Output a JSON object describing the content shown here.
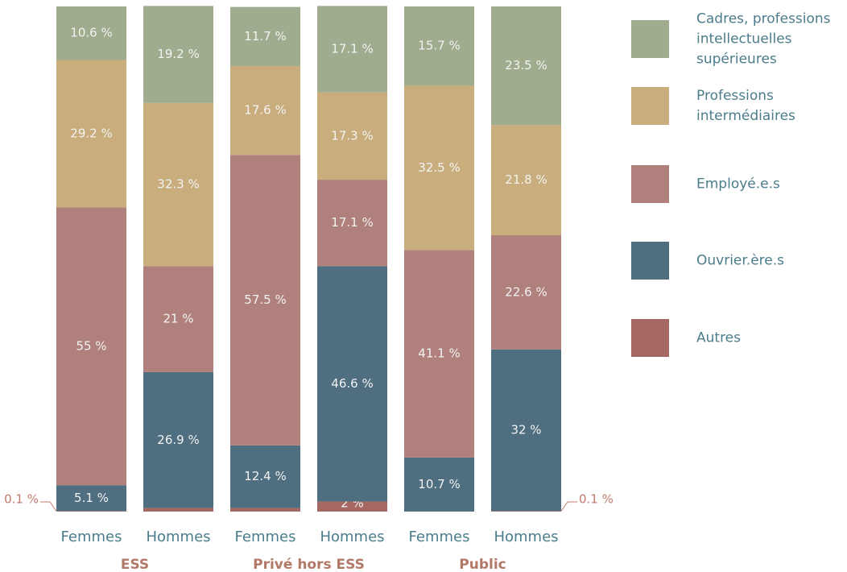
{
  "chart_data": {
    "type": "stacked_bar",
    "categories": [
      "Femmes",
      "Hommes",
      "Femmes",
      "Hommes",
      "Femmes",
      "Hommes"
    ],
    "groups": [
      "ESS",
      "Privé hors ESS",
      "Public"
    ],
    "ylim": [
      0,
      100
    ],
    "series": [
      {
        "name": "Autres",
        "color": "#a56862",
        "values": [
          0.1,
          0.7,
          0.7,
          2,
          null,
          0.1
        ],
        "value_labels": [
          "0.1 %",
          "0.7 %",
          "0.7 %",
          "2 %",
          null,
          "0.1 %"
        ]
      },
      {
        "name": "Ouvrier.ère.s",
        "color": "#4f6e7f",
        "values": [
          5.1,
          26.9,
          12.4,
          46.6,
          10.7,
          32
        ],
        "value_labels": [
          "5.1 %",
          "26.9 %",
          "12.4 %",
          "46.6 %",
          "10.7 %",
          "32 %"
        ]
      },
      {
        "name": "Employé.e.s",
        "color": "#b0807d",
        "values": [
          55,
          21,
          57.5,
          17.1,
          41.1,
          22.6
        ],
        "value_labels": [
          "55 %",
          "21 %",
          "57.5 %",
          "17.1 %",
          "41.1 %",
          "22.6 %"
        ]
      },
      {
        "name": "Professions intermédiaires",
        "color": "#c9ad7c",
        "values": [
          29.2,
          32.3,
          17.6,
          17.3,
          32.5,
          21.8
        ],
        "value_labels": [
          "29.2 %",
          "32.3 %",
          "17.6 %",
          "17.3 %",
          "32.5 %",
          "21.8 %"
        ]
      },
      {
        "name": "Cadres, professions intellectuelles supérieures",
        "color": "#9fac8e",
        "values": [
          10.6,
          19.2,
          11.7,
          17.1,
          15.7,
          23.5
        ],
        "value_labels": [
          "10.6 %",
          "19.2 %",
          "11.7 %",
          "17.1 %",
          "15.7 %",
          "23.5 %"
        ]
      }
    ]
  }
}
